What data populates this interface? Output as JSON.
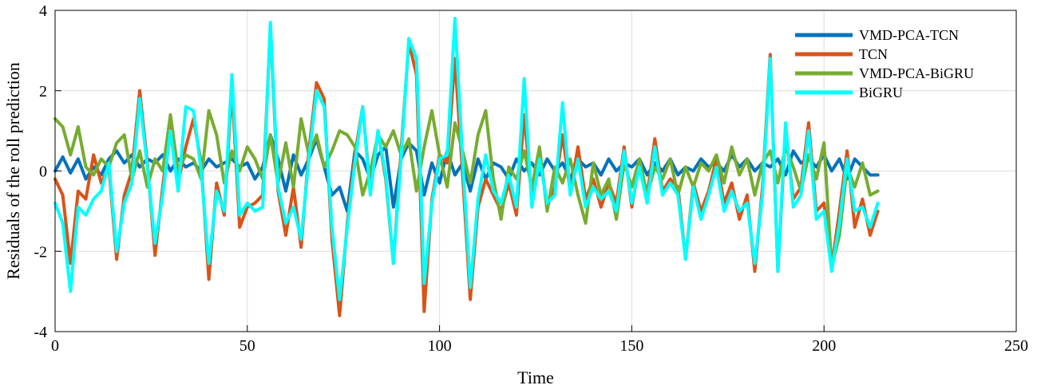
{
  "chart_data": {
    "type": "line",
    "title": "",
    "xlabel": "Time",
    "ylabel": "Residuals of the roll prediction",
    "xlim": [
      0,
      250
    ],
    "ylim": [
      -4,
      4
    ],
    "xticks": [
      0,
      50,
      100,
      150,
      200,
      250
    ],
    "yticks": [
      -4,
      -2,
      0,
      2,
      4
    ],
    "grid": true,
    "legend_position": "top-right",
    "series": [
      {
        "name": "VMD-PCA-TCN",
        "color": "#0072BD",
        "x": [
          0,
          2,
          4,
          6,
          8,
          10,
          12,
          14,
          16,
          18,
          20,
          22,
          24,
          26,
          28,
          30,
          32,
          34,
          36,
          38,
          40,
          42,
          44,
          46,
          48,
          50,
          52,
          54,
          56,
          58,
          60,
          62,
          64,
          66,
          68,
          70,
          72,
          74,
          76,
          78,
          80,
          82,
          84,
          86,
          88,
          90,
          92,
          94,
          96,
          98,
          100,
          102,
          104,
          106,
          108,
          110,
          112,
          114,
          116,
          118,
          120,
          122,
          124,
          126,
          128,
          130,
          132,
          134,
          136,
          138,
          140,
          142,
          144,
          146,
          148,
          150,
          152,
          154,
          156,
          158,
          160,
          162,
          164,
          166,
          168,
          170,
          172,
          174,
          176,
          178,
          180,
          182,
          184,
          186,
          188,
          190,
          192,
          194,
          196,
          198,
          200,
          202,
          204,
          206,
          208,
          210,
          212,
          214
        ],
        "y": [
          0.0,
          0.35,
          -0.05,
          0.3,
          -0.2,
          0.1,
          -0.1,
          0.3,
          0.5,
          0.2,
          0.4,
          0.1,
          0.3,
          0.2,
          0.4,
          0.0,
          0.3,
          0.1,
          0.2,
          0.0,
          0.3,
          0.1,
          0.2,
          0.3,
          0.1,
          0.2,
          -0.2,
          0.1,
          0.9,
          0.3,
          -0.5,
          0.4,
          -0.1,
          0.3,
          0.8,
          0.1,
          -0.6,
          -0.4,
          -1.0,
          0.5,
          0.3,
          -0.2,
          0.4,
          0.6,
          -0.9,
          0.3,
          0.7,
          0.5,
          -0.6,
          0.2,
          -0.3,
          0.5,
          -0.1,
          0.2,
          -0.5,
          0.3,
          -0.2,
          0.2,
          0.1,
          -0.2,
          0.3,
          0.0,
          0.2,
          -0.1,
          0.3,
          0.0,
          0.2,
          -0.2,
          0.3,
          0.1,
          0.2,
          -0.1,
          0.3,
          0.0,
          0.2,
          0.1,
          0.3,
          -0.1,
          0.2,
          0.0,
          0.3,
          -0.1,
          0.1,
          0.0,
          0.3,
          0.1,
          0.2,
          0.0,
          0.4,
          0.1,
          0.3,
          0.0,
          0.2,
          0.1,
          0.3,
          -0.1,
          0.5,
          0.2,
          0.3,
          0.1,
          0.4,
          0.0,
          0.3,
          -0.2,
          0.3,
          0.1,
          -0.1,
          -0.1
        ]
      },
      {
        "name": "TCN",
        "color": "#D95319",
        "x": [
          0,
          2,
          4,
          6,
          8,
          10,
          12,
          14,
          16,
          18,
          20,
          22,
          24,
          26,
          28,
          30,
          32,
          34,
          36,
          38,
          40,
          42,
          44,
          46,
          48,
          50,
          52,
          54,
          56,
          58,
          60,
          62,
          64,
          66,
          68,
          70,
          72,
          74,
          76,
          78,
          80,
          82,
          84,
          86,
          88,
          90,
          92,
          94,
          96,
          98,
          100,
          102,
          104,
          106,
          108,
          110,
          112,
          114,
          116,
          118,
          120,
          122,
          124,
          126,
          128,
          130,
          132,
          134,
          136,
          138,
          140,
          142,
          144,
          146,
          148,
          150,
          152,
          154,
          156,
          158,
          160,
          162,
          164,
          166,
          168,
          170,
          172,
          174,
          176,
          178,
          180,
          182,
          184,
          186,
          188,
          190,
          192,
          194,
          196,
          198,
          200,
          202,
          204,
          206,
          208,
          210,
          212,
          214
        ],
        "y": [
          -0.2,
          -0.6,
          -2.3,
          -0.5,
          -0.7,
          0.4,
          -0.3,
          0.1,
          -2.2,
          -0.6,
          0.0,
          2.0,
          0.2,
          -2.1,
          -0.4,
          1.2,
          -0.3,
          0.6,
          1.3,
          0.2,
          -2.7,
          -0.3,
          -1.1,
          2.1,
          -1.4,
          -0.9,
          -0.8,
          -0.6,
          3.6,
          -0.5,
          -1.6,
          -0.4,
          -1.9,
          0.5,
          2.2,
          1.8,
          -1.7,
          -3.6,
          -1.3,
          0.4,
          1.6,
          -0.5,
          1.0,
          -0.2,
          -2.3,
          0.5,
          3.2,
          2.4,
          -3.5,
          -0.7,
          0.4,
          0.2,
          2.8,
          -0.1,
          -3.2,
          -0.9,
          -0.2,
          -0.6,
          -1.0,
          -0.3,
          -1.1,
          1.4,
          -0.7,
          0.5,
          -0.9,
          -0.4,
          0.9,
          -0.5,
          0.6,
          -0.7,
          -0.2,
          -0.9,
          -0.3,
          -0.8,
          0.6,
          -0.9,
          0.2,
          -0.6,
          0.8,
          -0.5,
          -0.2,
          -0.4,
          -2.2,
          -0.3,
          -1.0,
          -0.5,
          0.3,
          -0.8,
          -0.3,
          -1.2,
          -0.6,
          -2.5,
          -0.4,
          2.9,
          -2.5,
          1.0,
          -0.7,
          -0.4,
          1.2,
          -1.0,
          -0.8,
          -2.4,
          -1.0,
          0.5,
          -1.4,
          -0.7,
          -1.6,
          -1.0
        ]
      },
      {
        "name": "VMD-PCA-BiGRU",
        "color": "#77AC30",
        "x": [
          0,
          2,
          4,
          6,
          8,
          10,
          12,
          14,
          16,
          18,
          20,
          22,
          24,
          26,
          28,
          30,
          32,
          34,
          36,
          38,
          40,
          42,
          44,
          46,
          48,
          50,
          52,
          54,
          56,
          58,
          60,
          62,
          64,
          66,
          68,
          70,
          72,
          74,
          76,
          78,
          80,
          82,
          84,
          86,
          88,
          90,
          92,
          94,
          96,
          98,
          100,
          102,
          104,
          106,
          108,
          110,
          112,
          114,
          116,
          118,
          120,
          122,
          124,
          126,
          128,
          130,
          132,
          134,
          136,
          138,
          140,
          142,
          144,
          146,
          148,
          150,
          152,
          154,
          156,
          158,
          160,
          162,
          164,
          166,
          168,
          170,
          172,
          174,
          176,
          178,
          180,
          182,
          184,
          186,
          188,
          190,
          192,
          194,
          196,
          198,
          200,
          202,
          204,
          206,
          208,
          210,
          212,
          214
        ],
        "y": [
          1.3,
          1.1,
          0.4,
          1.1,
          0.1,
          -0.1,
          0.3,
          0.1,
          0.7,
          0.9,
          -0.2,
          0.5,
          -0.4,
          0.3,
          0.0,
          1.4,
          0.0,
          0.4,
          0.3,
          -0.2,
          1.5,
          0.9,
          -0.3,
          0.5,
          0.0,
          0.6,
          0.3,
          -0.2,
          0.9,
          -0.3,
          0.7,
          -0.4,
          1.3,
          0.4,
          0.9,
          0.1,
          0.5,
          1.0,
          0.9,
          0.6,
          -0.6,
          0.0,
          0.9,
          0.6,
          1.0,
          0.4,
          0.8,
          -0.5,
          0.6,
          1.5,
          0.4,
          -0.4,
          1.2,
          0.5,
          -0.3,
          0.9,
          1.5,
          -0.2,
          -1.2,
          0.1,
          -0.2,
          0.5,
          -0.4,
          0.6,
          -1.0,
          0.1,
          -0.3,
          0.3,
          -0.6,
          -1.3,
          0.2,
          -0.6,
          -0.2,
          -1.2,
          0.2,
          -0.4,
          0.3,
          -0.6,
          0.1,
          -0.2,
          0.3,
          -0.6,
          0.1,
          -0.4,
          0.2,
          0.0,
          0.4,
          -0.3,
          0.6,
          -0.1,
          0.3,
          -0.6,
          0.2,
          0.5,
          -0.3,
          0.6,
          0.1,
          -0.5,
          0.4,
          -0.2,
          0.7,
          -2.4,
          -1.6,
          0.1,
          -0.4,
          0.2,
          -0.6,
          -0.5
        ]
      },
      {
        "name": "BiGRU",
        "color": "#00FFFF",
        "x": [
          0,
          2,
          4,
          6,
          8,
          10,
          12,
          14,
          16,
          18,
          20,
          22,
          24,
          26,
          28,
          30,
          32,
          34,
          36,
          38,
          40,
          42,
          44,
          46,
          48,
          50,
          52,
          54,
          56,
          58,
          60,
          62,
          64,
          66,
          68,
          70,
          72,
          74,
          76,
          78,
          80,
          82,
          84,
          86,
          88,
          90,
          92,
          94,
          96,
          98,
          100,
          102,
          104,
          106,
          108,
          110,
          112,
          114,
          116,
          118,
          120,
          122,
          124,
          126,
          128,
          130,
          132,
          134,
          136,
          138,
          140,
          142,
          144,
          146,
          148,
          150,
          152,
          154,
          156,
          158,
          160,
          162,
          164,
          166,
          168,
          170,
          172,
          174,
          176,
          178,
          180,
          182,
          184,
          186,
          188,
          190,
          192,
          194,
          196,
          198,
          200,
          202,
          204,
          206,
          208,
          210,
          212,
          214
        ],
        "y": [
          -0.8,
          -1.3,
          -3.0,
          -0.9,
          -1.1,
          -0.7,
          -0.5,
          0.2,
          -2.0,
          -0.8,
          -0.3,
          1.8,
          0.1,
          -1.8,
          -0.6,
          1.0,
          -0.5,
          1.6,
          1.5,
          0.0,
          -2.3,
          -0.5,
          -1.0,
          2.4,
          -1.1,
          -0.8,
          -1.0,
          -0.9,
          3.7,
          -0.4,
          -1.3,
          -0.9,
          -1.7,
          0.3,
          2.0,
          1.6,
          -1.4,
          -3.2,
          -1.4,
          0.2,
          1.6,
          -0.6,
          1.0,
          -0.1,
          -2.3,
          0.3,
          3.3,
          2.8,
          -2.8,
          -0.8,
          0.3,
          0.4,
          3.8,
          0.3,
          -2.9,
          -0.7,
          0.4,
          -0.5,
          -0.8,
          -0.1,
          -0.9,
          2.3,
          -0.9,
          0.3,
          -0.8,
          -0.6,
          1.7,
          -0.6,
          0.3,
          -0.9,
          -0.4,
          -0.7,
          -0.5,
          -1.0,
          0.5,
          -0.8,
          0.1,
          -0.8,
          0.6,
          -0.6,
          -0.3,
          -0.6,
          -2.2,
          -0.4,
          -1.2,
          -0.6,
          0.1,
          -1.0,
          -0.5,
          -1.0,
          -0.8,
          -2.3,
          -0.6,
          2.8,
          -2.5,
          1.2,
          -0.9,
          -0.6,
          1.0,
          -1.2,
          -1.0,
          -2.5,
          -1.3,
          0.3,
          -1.0,
          -0.9,
          -1.4,
          -0.8
        ]
      }
    ]
  }
}
